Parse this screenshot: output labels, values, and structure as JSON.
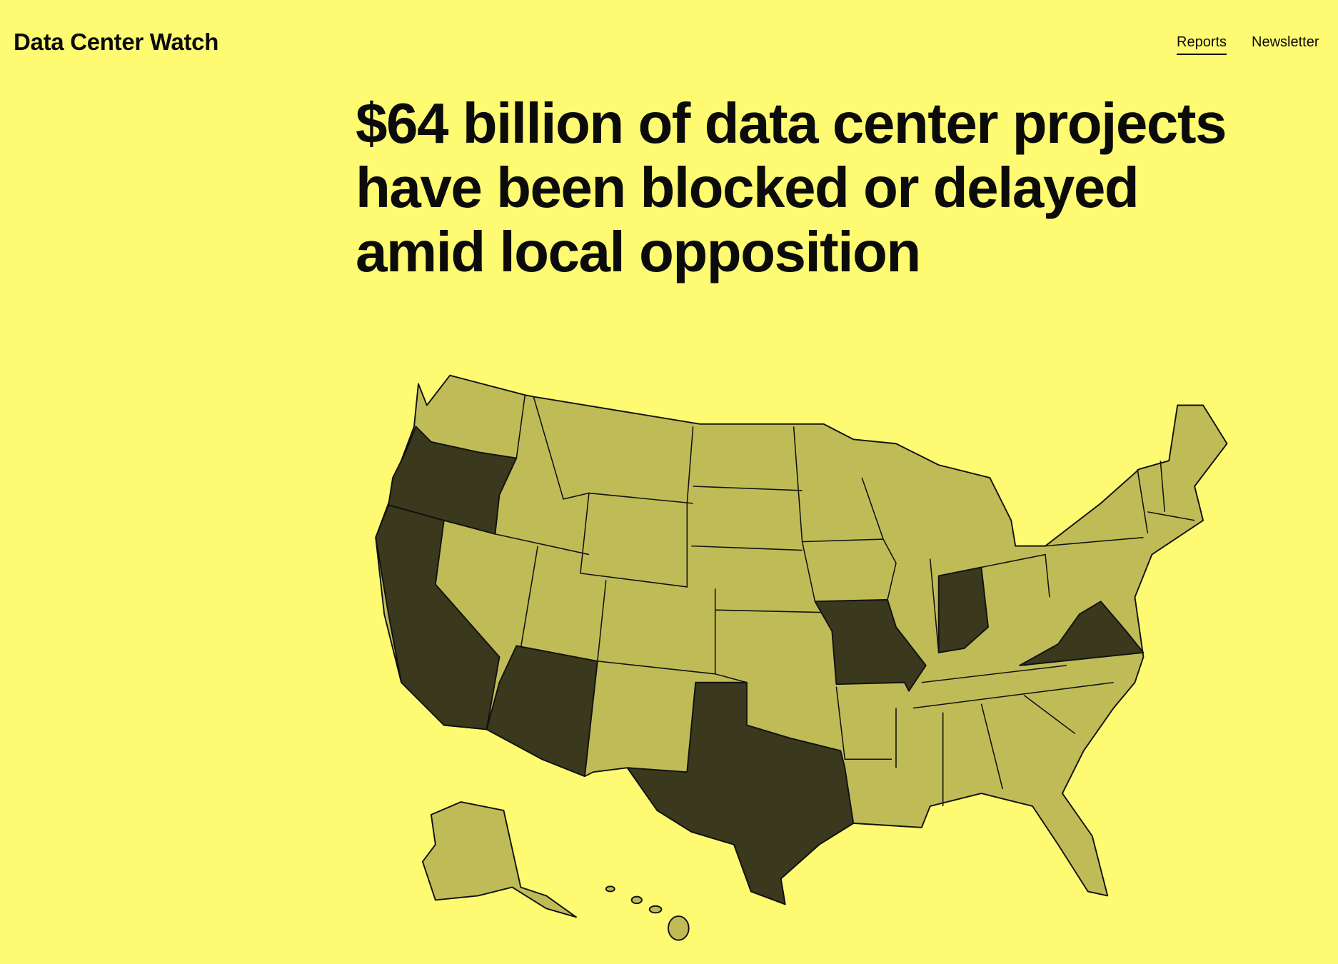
{
  "header": {
    "brand": "Data Center Watch",
    "nav": [
      "Reports",
      "Newsletter"
    ]
  },
  "hero": {
    "headline": [
      "$64 billion of data center projects",
      "have been blocked or delayed",
      "amid local opposition"
    ]
  }
}
